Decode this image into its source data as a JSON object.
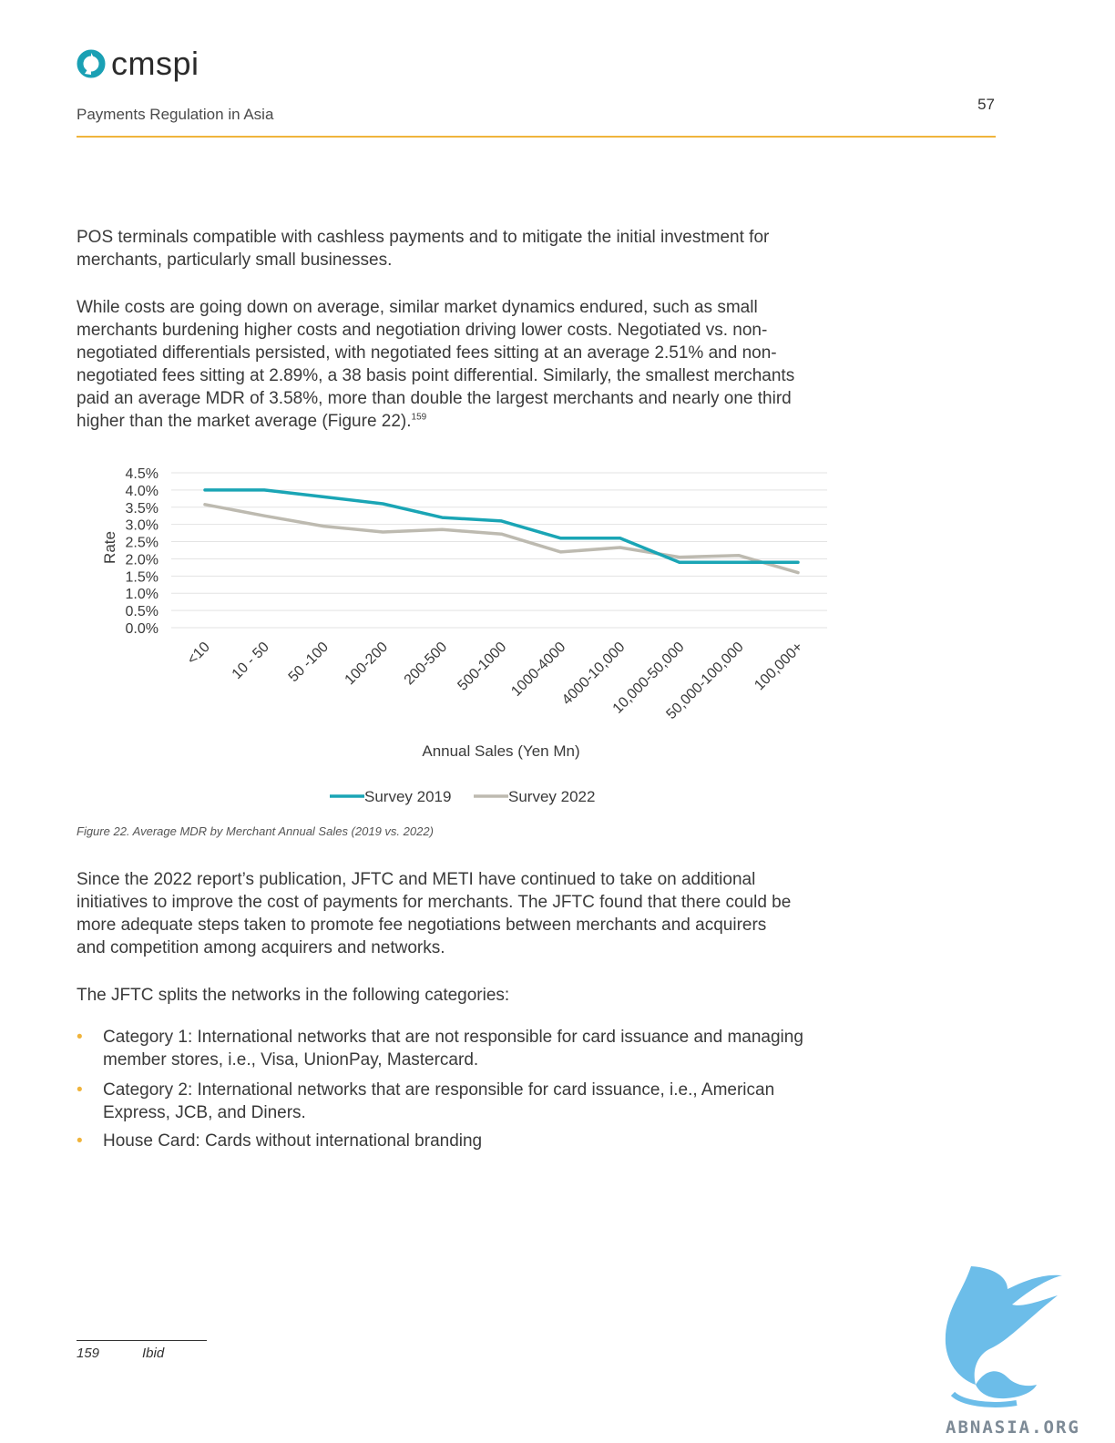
{
  "header": {
    "brand": "cmspi",
    "doc_title": "Payments Regulation in Asia",
    "page_number": "57",
    "accent_color": "#f0b43c",
    "logo_color": "#1aa0b4"
  },
  "body": {
    "para1": "POS terminals compatible with cashless payments and to mitigate the initial investment for merchants, particularly small businesses.",
    "para2": "While costs are going down on average, similar market dynamics endured, such as small merchants burdening higher costs and negotiation driving lower costs. Negotiated vs. non-negotiated differentials persisted, with negotiated fees sitting at an average 2.51% and non-negotiated fees sitting at 2.89%, a 38 basis point differential. Similarly, the smallest merchants paid an average MDR of 3.58%, more than double the largest merchants and nearly one third higher than the market average (Figure 22).",
    "para2_footnote_ref": "159",
    "caption": "Figure 22. Average MDR by Merchant Annual Sales (2019 vs. 2022)",
    "para3": "Since the 2022 report’s publication, JFTC and METI have continued to take on additional initiatives to improve the cost of payments for merchants. The JFTC found that there could be more adequate steps taken to promote fee negotiations between merchants and acquirers and competition among acquirers and networks.",
    "para4": "The JFTC splits the networks in the following categories:",
    "bullets": [
      "Category 1: International networks that are not responsible for card issuance and managing member stores, i.e., Visa, UnionPay, Mastercard.",
      "Category 2: International networks that are responsible for card issuance, i.e., American Express, JCB, and Diners.",
      "House Card: Cards without international branding"
    ]
  },
  "footnote": {
    "number": "159",
    "text": "Ibid"
  },
  "watermark": {
    "text": "ABNASIA.ORG",
    "color": "#5ab4e6"
  },
  "chart_data": {
    "type": "line",
    "title": "",
    "xlabel": "Annual Sales (Yen Mn)",
    "ylabel": "Rate",
    "categories": [
      "<10",
      "10 - 50",
      "50 -100",
      "100-200",
      "200-500",
      "500-1000",
      "1000-4000",
      "4000-10,000",
      "10,000-50,000",
      "50,000-100,000",
      "100,000+"
    ],
    "yticks": [
      "0.0%",
      "0.5%",
      "1.0%",
      "1.5%",
      "2.0%",
      "2.5%",
      "3.0%",
      "3.5%",
      "4.0%",
      "4.5%"
    ],
    "ylim": [
      0,
      4.5
    ],
    "grid": true,
    "legend_position": "bottom",
    "series": [
      {
        "name": "Survey 2019",
        "color": "#1aa5b5",
        "values": [
          4.0,
          4.0,
          3.8,
          3.6,
          3.2,
          3.1,
          2.6,
          2.6,
          1.9,
          1.9,
          1.9
        ]
      },
      {
        "name": "Survey 2022",
        "color": "#bdbab0",
        "values": [
          3.58,
          3.25,
          2.95,
          2.78,
          2.85,
          2.72,
          2.2,
          2.33,
          2.05,
          2.1,
          1.6
        ]
      }
    ]
  }
}
